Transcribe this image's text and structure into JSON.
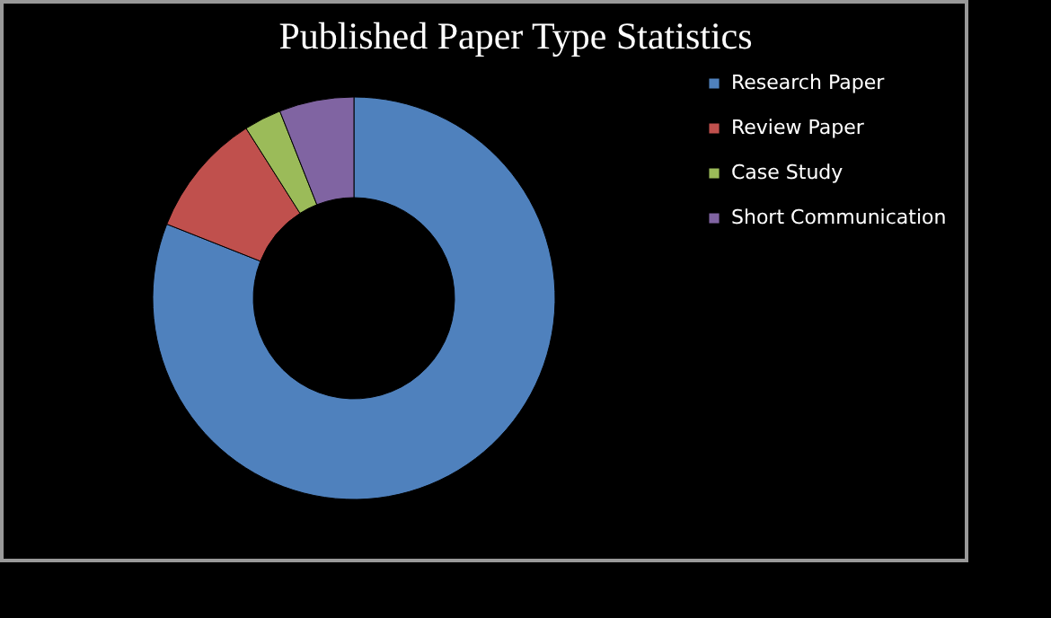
{
  "chart_data": {
    "type": "donut",
    "title": "Published Paper Type Statistics",
    "categories": [
      "Research Paper",
      "Review Paper",
      "Case Study",
      "Short Communication"
    ],
    "values": [
      81,
      10,
      3,
      6
    ],
    "colors": [
      "#4f81bd",
      "#c0504d",
      "#9bbb59",
      "#8064a2"
    ],
    "legend": "right"
  }
}
